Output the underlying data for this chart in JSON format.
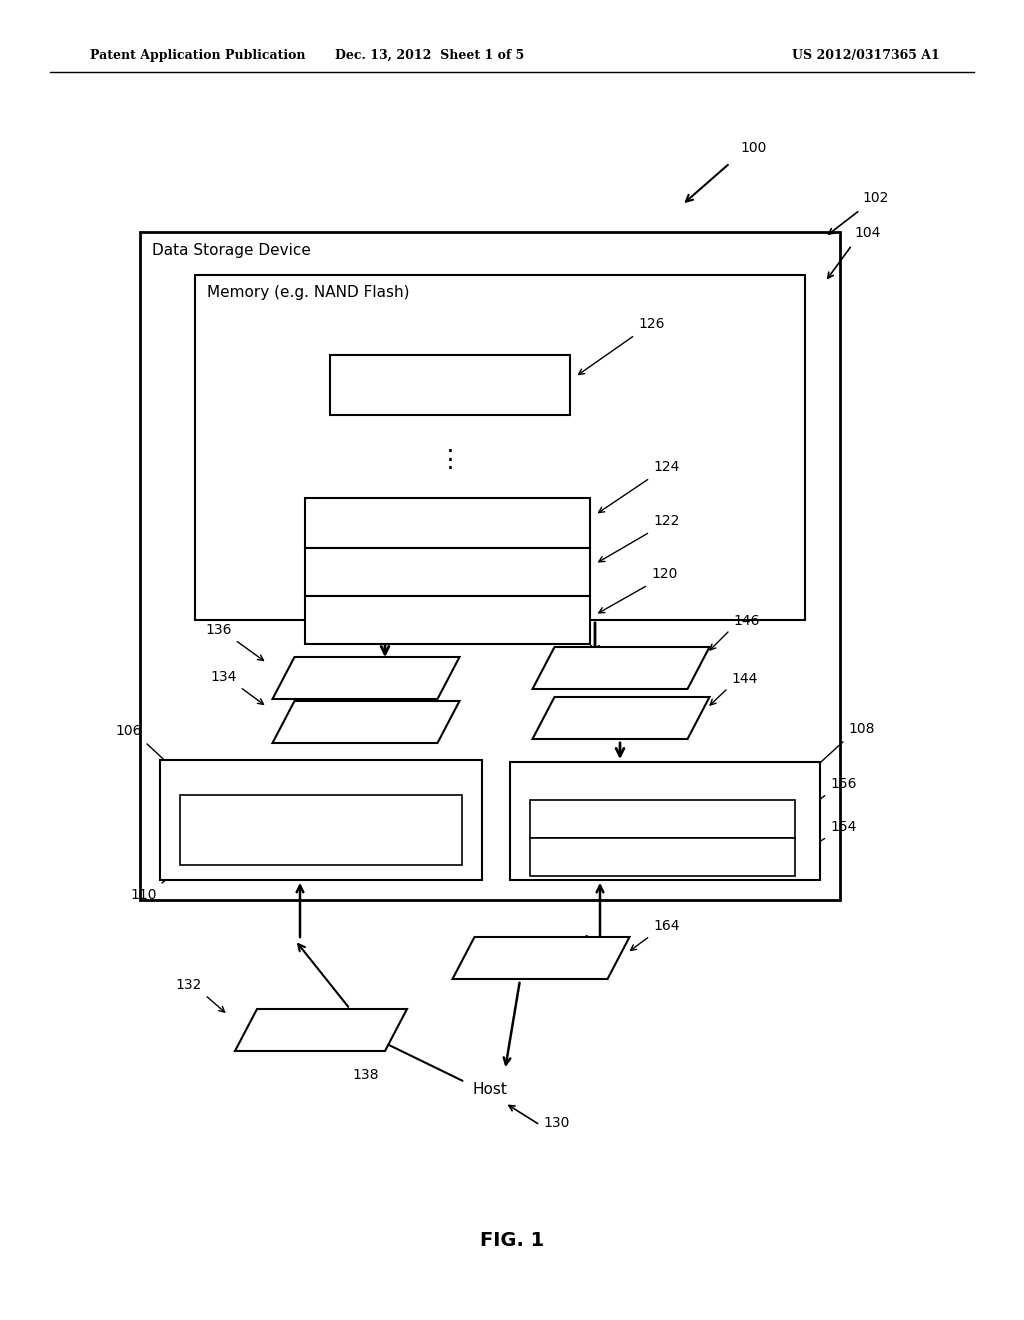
{
  "bg_color": "#ffffff",
  "header_left": "Patent Application Publication",
  "header_mid": "Dec. 13, 2012  Sheet 1 of 5",
  "header_right": "US 2012/0317365 A1",
  "fig_label": "FIG. 1"
}
